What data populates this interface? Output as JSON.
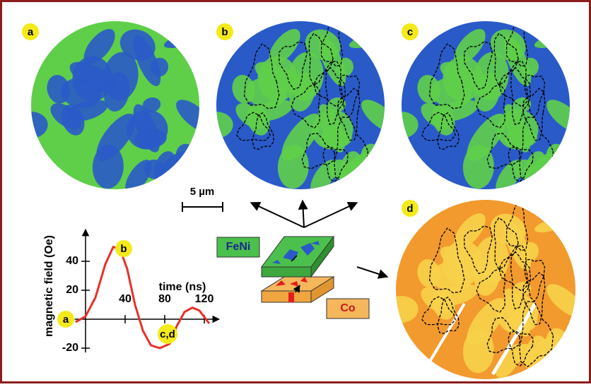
{
  "panels": [
    "a",
    "b",
    "c",
    "d"
  ],
  "scale_bar": "5 µm",
  "layers": [
    "FeNi",
    "Co"
  ],
  "chart_data": {
    "type": "line",
    "y_label": "magnetic field  (Oe)",
    "x_label": "time  (ns)",
    "annotations": [
      "a",
      "b",
      "c,d"
    ],
    "x": [
      -10,
      0,
      10,
      20,
      28,
      35,
      42,
      50,
      58,
      66,
      75,
      85,
      92,
      100,
      108,
      115,
      125
    ],
    "values": [
      -2,
      2,
      15,
      38,
      50,
      48,
      35,
      10,
      -8,
      -18,
      -20,
      -17,
      -5,
      5,
      8,
      6,
      -3
    ],
    "color": "#e8302a",
    "xlim": [
      -11,
      135
    ],
    "ylim": [
      -23,
      62
    ],
    "xticks": [
      40,
      80,
      120
    ],
    "yticks": [
      -20,
      20,
      40
    ]
  }
}
